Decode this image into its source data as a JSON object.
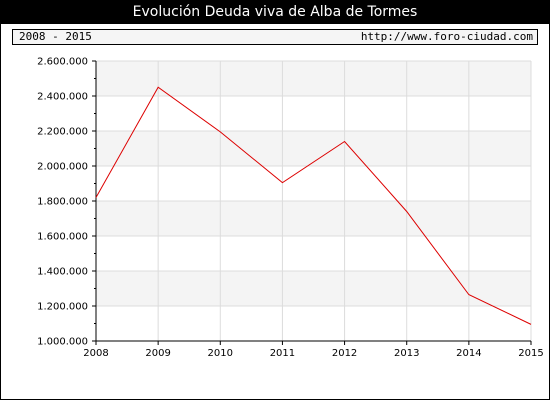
{
  "chart_title": "Evolución Deuda viva de Alba de Tormes",
  "info_bar": {
    "period": "2008 - 2015",
    "source": "http://www.foro-ciudad.com"
  },
  "colors": {
    "line": "#dd0000",
    "band": "#f4f4f4",
    "grid": "#dcdcdc"
  },
  "chart_data": {
    "type": "line",
    "title": "Evolución Deuda viva de Alba de Tormes",
    "xlabel": "",
    "ylabel": "",
    "ylim": [
      1000000,
      2600000
    ],
    "y_ticks": [
      1000000,
      1200000,
      1400000,
      1600000,
      1800000,
      2000000,
      2200000,
      2400000,
      2600000
    ],
    "y_tick_labels": [
      "1.000.000",
      "1.200.000",
      "1.400.000",
      "1.600.000",
      "1.800.000",
      "2.000.000",
      "2.200.000",
      "2.400.000",
      "2.600.000"
    ],
    "categories": [
      "2008",
      "2009",
      "2010",
      "2011",
      "2012",
      "2013",
      "2014",
      "2015"
    ],
    "values": [
      1820000,
      2450000,
      2195000,
      1905000,
      2140000,
      1740000,
      1265000,
      1095000
    ],
    "grid": true,
    "alternating_bands": true
  }
}
